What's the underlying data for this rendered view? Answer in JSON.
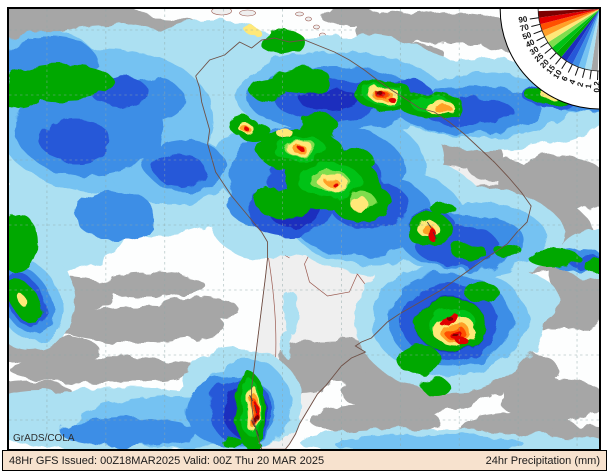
{
  "map": {
    "credit": "GrADS/COLA",
    "region": "South America"
  },
  "legend": {
    "units": "mm",
    "levels": [
      {
        "label": "0.2",
        "color": "#a6a6a6"
      },
      {
        "label": "1",
        "color": "#ace0f2"
      },
      {
        "label": "2",
        "color": "#74c2f2"
      },
      {
        "label": "4",
        "color": "#3e8ee6"
      },
      {
        "label": "6",
        "color": "#2658d8"
      },
      {
        "label": "10",
        "color": "#1c2ebe"
      },
      {
        "label": "15",
        "color": "#00a800"
      },
      {
        "label": "20",
        "color": "#00c214"
      },
      {
        "label": "25",
        "color": "#7fdd4e"
      },
      {
        "label": "30",
        "color": "#ffe878"
      },
      {
        "label": "40",
        "color": "#ffa028"
      },
      {
        "label": "50",
        "color": "#ff5000"
      },
      {
        "label": "70",
        "color": "#e00000"
      },
      {
        "label": "90",
        "color": "#7d0000"
      }
    ]
  },
  "footer": {
    "left": "48Hr GFS Issued: 00Z18MAR2025 Valid: 00Z Thu 20 MAR 2025",
    "right": "24hr Precipitation (mm)",
    "model": "GFS",
    "forecast_hour": "48Hr",
    "issued": "00Z18MAR2025",
    "valid": "00Z Thu 20 MAR 2025"
  }
}
